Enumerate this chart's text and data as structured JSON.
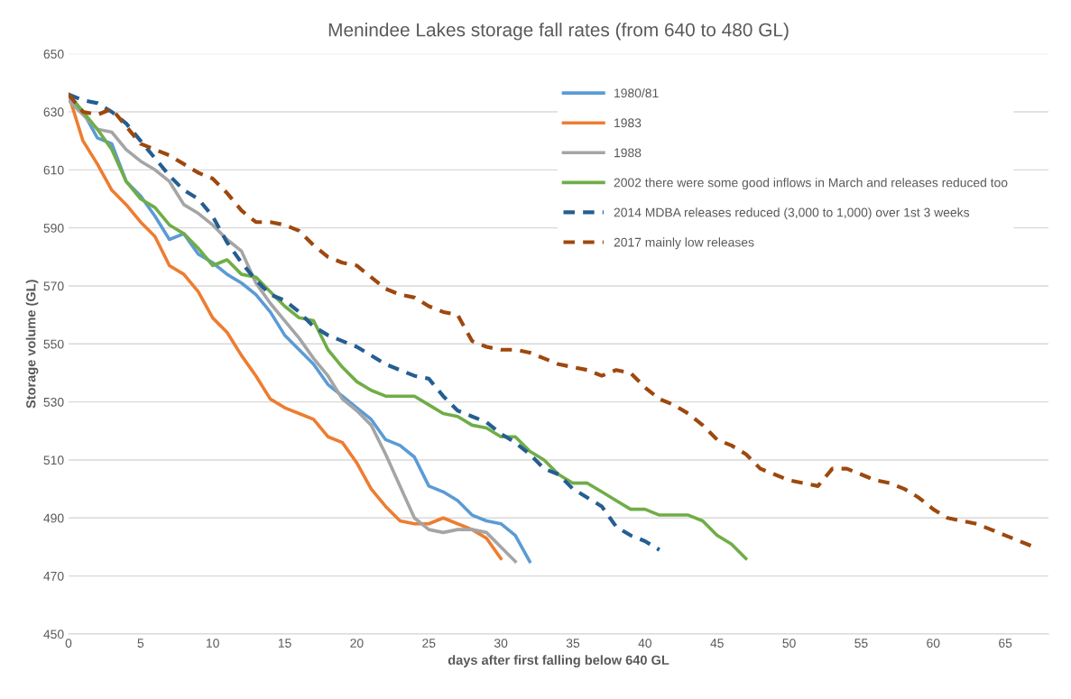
{
  "chart_data": {
    "type": "line",
    "title": "Menindee Lakes storage fall rates (from 640 to 480 GL)",
    "xlabel": "days after first falling below 640 GL",
    "ylabel": "Storage volume (GL)",
    "xlim": [
      0,
      68
    ],
    "xticks": [
      0,
      5,
      10,
      15,
      20,
      25,
      30,
      35,
      40,
      45,
      50,
      55,
      60,
      65
    ],
    "ylim": [
      450,
      650
    ],
    "yticks": [
      450,
      470,
      490,
      510,
      530,
      550,
      570,
      590,
      610,
      630,
      650
    ],
    "grid": "y",
    "legend": "top right",
    "series": [
      {
        "name": "1980/81",
        "color": "#5b9bd5",
        "line_style": "solid",
        "x": [
          0,
          1,
          2,
          3,
          4,
          5,
          6,
          7,
          8,
          9,
          10,
          11,
          12,
          13,
          14,
          15,
          16,
          17,
          18,
          19,
          20,
          21,
          22,
          23,
          24,
          25,
          26,
          27,
          28,
          29,
          30,
          31,
          32
        ],
        "values": [
          636,
          630,
          621,
          619,
          606,
          601,
          594,
          586,
          588,
          581,
          578,
          574,
          571,
          567,
          561,
          553,
          548,
          543,
          536,
          532,
          528,
          524,
          517,
          515,
          511,
          501,
          499,
          496,
          491,
          489,
          488,
          484,
          475
        ]
      },
      {
        "name": "1983",
        "color": "#ed7d31",
        "line_style": "solid",
        "x": [
          0,
          1,
          2,
          3,
          4,
          5,
          6,
          7,
          8,
          9,
          10,
          11,
          12,
          13,
          14,
          15,
          16,
          17,
          18,
          19,
          20,
          21,
          22,
          23,
          24,
          25,
          26,
          27,
          28,
          29,
          30
        ],
        "values": [
          636,
          620,
          612,
          603,
          598,
          592,
          587,
          577,
          574,
          568,
          559,
          554,
          546,
          539,
          531,
          528,
          526,
          524,
          518,
          516,
          509,
          500,
          494,
          489,
          488,
          488,
          490,
          488,
          486,
          483,
          476
        ]
      },
      {
        "name": "1988",
        "color": "#a5a5a5",
        "line_style": "solid",
        "x": [
          0,
          1,
          2,
          3,
          4,
          5,
          6,
          7,
          8,
          9,
          10,
          11,
          12,
          13,
          14,
          15,
          16,
          17,
          18,
          19,
          20,
          21,
          22,
          23,
          24,
          25,
          26,
          27,
          28,
          29,
          30,
          31
        ],
        "values": [
          634,
          629,
          624,
          623,
          617,
          613,
          610,
          606,
          598,
          595,
          591,
          586,
          582,
          571,
          564,
          558,
          552,
          545,
          539,
          531,
          527,
          522,
          512,
          501,
          490,
          486,
          485,
          486,
          486,
          485,
          480,
          475
        ]
      },
      {
        "name": "2002 there were some good inflows in March and releases reduced too",
        "color": "#70ad47",
        "line_style": "solid",
        "x": [
          0,
          1,
          2,
          3,
          4,
          5,
          6,
          7,
          8,
          9,
          10,
          11,
          12,
          13,
          14,
          15,
          16,
          17,
          18,
          19,
          20,
          21,
          22,
          23,
          24,
          25,
          26,
          27,
          28,
          29,
          30,
          31,
          32,
          33,
          34,
          35,
          36,
          37,
          38,
          39,
          40,
          41,
          42,
          43,
          44,
          45,
          46,
          47
        ],
        "values": [
          636,
          630,
          624,
          617,
          606,
          600,
          597,
          591,
          588,
          583,
          577,
          579,
          574,
          573,
          568,
          563,
          559,
          558,
          548,
          542,
          537,
          534,
          532,
          532,
          532,
          529,
          526,
          525,
          522,
          521,
          518,
          518,
          513,
          510,
          505,
          502,
          502,
          499,
          496,
          493,
          493,
          491,
          491,
          491,
          489,
          484,
          481,
          476
        ]
      },
      {
        "name": "2014 MDBA releases reduced (3,000 to 1,000) over 1st 3 weeks",
        "color": "#255e91",
        "line_style": "dashed",
        "x": [
          0,
          1,
          2,
          3,
          4,
          5,
          6,
          7,
          8,
          9,
          10,
          11,
          12,
          13,
          14,
          15,
          16,
          17,
          18,
          19,
          20,
          21,
          22,
          23,
          24,
          25,
          26,
          27,
          28,
          29,
          30,
          31,
          32,
          33,
          34,
          35,
          36,
          37,
          38,
          39,
          40,
          41
        ],
        "values": [
          636,
          634,
          633,
          630,
          626,
          620,
          614,
          608,
          603,
          600,
          594,
          585,
          578,
          572,
          567,
          565,
          561,
          556,
          553,
          551,
          549,
          546,
          543,
          541,
          539,
          538,
          532,
          527,
          525,
          523,
          519,
          516,
          512,
          507,
          505,
          500,
          497,
          494,
          487,
          484,
          482,
          479
        ]
      },
      {
        "name": "2017 mainly low releases",
        "color": "#9e480e",
        "line_style": "dashed",
        "x": [
          0,
          1,
          2,
          3,
          4,
          5,
          6,
          7,
          8,
          9,
          10,
          11,
          12,
          13,
          14,
          15,
          16,
          17,
          18,
          19,
          20,
          21,
          22,
          23,
          24,
          25,
          26,
          27,
          28,
          29,
          30,
          31,
          32,
          33,
          34,
          35,
          36,
          37,
          38,
          39,
          40,
          41,
          42,
          43,
          44,
          45,
          46,
          47,
          48,
          49,
          50,
          51,
          52,
          53,
          54,
          55,
          56,
          57,
          58,
          59,
          60,
          61,
          62,
          63,
          64,
          65,
          66,
          67
        ],
        "values": [
          636,
          630,
          629,
          631,
          625,
          619,
          617,
          615,
          612,
          609,
          607,
          602,
          596,
          592,
          592,
          591,
          589,
          584,
          580,
          578,
          577,
          573,
          569,
          567,
          566,
          563,
          561,
          560,
          551,
          549,
          548,
          548,
          547,
          545,
          543,
          542,
          541,
          539,
          541,
          540,
          535,
          531,
          529,
          526,
          522,
          517,
          515,
          512,
          507,
          505,
          503,
          502,
          501,
          507,
          507,
          505,
          503,
          502,
          500,
          497,
          493,
          490,
          489,
          488,
          486,
          484,
          482,
          480
        ]
      }
    ]
  }
}
